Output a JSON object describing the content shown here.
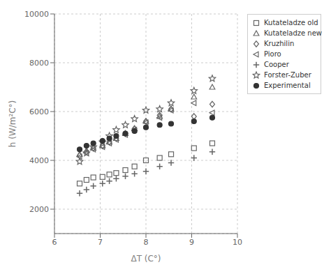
{
  "chart_data": {
    "type": "scatter",
    "xlabel": "ΔT (C°)",
    "ylabel": "h (W/m²C°)",
    "xlim": [
      6,
      10
    ],
    "ylim": [
      1000,
      10000
    ],
    "xticks": [
      6,
      7,
      8,
      9,
      10
    ],
    "yticks": [
      2000,
      4000,
      6000,
      8000,
      10000
    ],
    "grid": true,
    "legend": "upper right",
    "series": [
      {
        "name": "Kutateladze old",
        "color": "#666666",
        "marker": "square-open",
        "x": [
          6.55,
          6.7,
          6.85,
          7.05,
          7.2,
          7.35,
          7.55,
          7.75,
          8.0,
          8.3,
          8.55,
          9.05,
          9.45
        ],
        "values": [
          3050,
          3200,
          3300,
          3320,
          3420,
          3480,
          3600,
          3750,
          4000,
          4100,
          4250,
          4500,
          4700
        ]
      },
      {
        "name": "Kutateladze new",
        "color": "#666666",
        "marker": "triangleup-open",
        "x": [
          6.55,
          6.7,
          6.85,
          7.05,
          7.2,
          7.35,
          7.55,
          7.75,
          8.0,
          8.3,
          8.55,
          9.05,
          9.45
        ],
        "values": [
          4250,
          4400,
          4500,
          4600,
          4750,
          4900,
          5100,
          5300,
          5600,
          5800,
          6100,
          6600,
          7000
        ]
      },
      {
        "name": "Kruzhilin",
        "color": "#666666",
        "marker": "diamond-open",
        "x": [
          6.55,
          6.7,
          6.85,
          7.05,
          7.2,
          7.35,
          7.55,
          7.75,
          8.0,
          8.3,
          8.55,
          9.05,
          9.45
        ],
        "values": [
          4200,
          4350,
          4500,
          4600,
          4750,
          4900,
          5100,
          5300,
          5600,
          5850,
          6100,
          5800,
          6300
        ]
      },
      {
        "name": "Pioro",
        "color": "#666666",
        "marker": "triangleleft-open",
        "x": [
          6.55,
          6.7,
          6.85,
          7.05,
          7.2,
          7.35,
          7.55,
          7.75,
          8.0,
          8.3,
          8.55,
          9.05,
          9.45
        ],
        "values": [
          4150,
          4300,
          4450,
          4550,
          4700,
          4850,
          5050,
          5250,
          5550,
          5750,
          6050,
          6350,
          5950
        ]
      },
      {
        "name": "Cooper",
        "color": "#666666",
        "marker": "plus-filled",
        "x": [
          6.55,
          6.7,
          6.85,
          7.05,
          7.2,
          7.35,
          7.55,
          7.75,
          8.0,
          8.3,
          8.55,
          9.05,
          9.45
        ],
        "values": [
          2650,
          2800,
          2950,
          3050,
          3150,
          3250,
          3350,
          3450,
          3550,
          3750,
          3900,
          4100,
          4350
        ]
      },
      {
        "name": "Forster-Zuber",
        "color": "#666666",
        "marker": "star-open",
        "x": [
          6.55,
          6.7,
          6.85,
          7.05,
          7.2,
          7.35,
          7.55,
          7.75,
          8.0,
          8.3,
          8.55,
          9.05,
          9.45
        ],
        "values": [
          3950,
          4300,
          4550,
          4750,
          5000,
          5250,
          5450,
          5700,
          6050,
          6100,
          6350,
          6850,
          7350
        ]
      },
      {
        "name": "Experimental",
        "color": "#333333",
        "marker": "circle-filled",
        "x": [
          6.55,
          6.7,
          6.85,
          7.05,
          7.2,
          7.35,
          7.55,
          7.75,
          8.0,
          8.3,
          8.55,
          9.05,
          9.45
        ],
        "values": [
          4450,
          4600,
          4700,
          4800,
          4900,
          5000,
          5100,
          5200,
          5350,
          5450,
          5500,
          5600,
          5750
        ]
      }
    ]
  }
}
